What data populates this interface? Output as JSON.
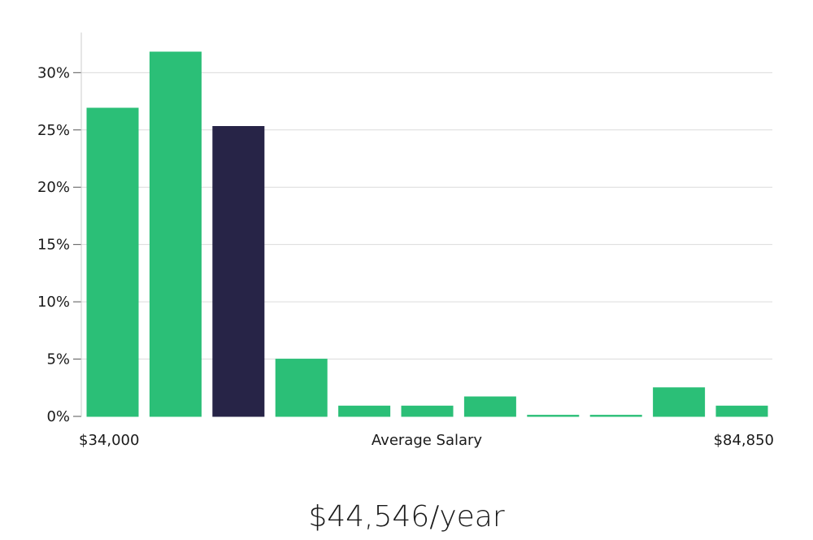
{
  "chart_data": {
    "type": "bar",
    "xlabel": "Average Salary",
    "x_min_label": "$34,000",
    "x_max_label": "$84,850",
    "yticks": [
      0,
      5,
      10,
      15,
      20,
      25,
      30
    ],
    "ytick_labels": [
      "0%",
      "5%",
      "10%",
      "15%",
      "20%",
      "25%",
      "30%"
    ],
    "ylim": [
      0,
      33.5
    ],
    "values": [
      26.9,
      31.8,
      25.3,
      5.0,
      0.9,
      0.9,
      1.7,
      0.1,
      0.1,
      2.5,
      0.9
    ],
    "highlight_index": 2,
    "grid": true
  },
  "colors": {
    "bar": "#2bbf77",
    "highlight": "#272447",
    "grid": "#dcdcdc",
    "axis": "#cccccc"
  },
  "summary": {
    "salary": "$44,546/year"
  }
}
